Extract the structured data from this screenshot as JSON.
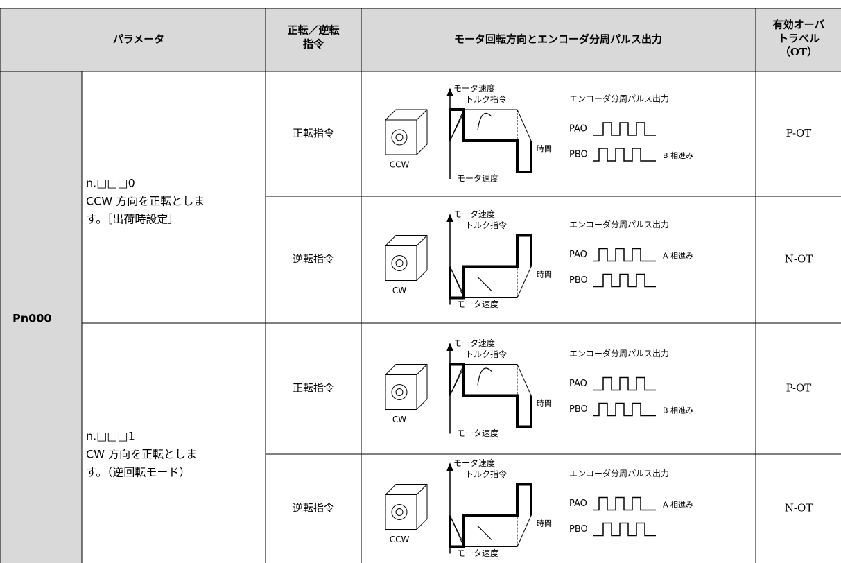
{
  "header": {
    "parameter": "パラメータ",
    "command": [
      "正転／逆転",
      "指令"
    ],
    "diagram": "モータ回転方向とエンコーダ分周パルス出力",
    "overtravel": [
      "有効オーバ",
      "トラベル",
      "（OT）"
    ]
  },
  "parameter": "Pn000",
  "groups": [
    {
      "setting": "n.□□□0",
      "description": [
        "CCW 方向を正転としま",
        "す。［出荷時設定］"
      ]
    },
    {
      "setting": "n.□□□1",
      "description": [
        "CW 方向を正転としま",
        "す。（逆回転モード）"
      ]
    }
  ],
  "rows": [
    {
      "command": "正転指令",
      "motor": "CCW",
      "speed_top": "モータ速度",
      "torque": "トルク指令",
      "time": "時間",
      "speed_bottom": "モータ速度",
      "encoder": "エンコーダ分周パルス出力",
      "pao": "PAO",
      "pbo": "PBO",
      "pbo_note": "B 相進み",
      "ot": "P-OT"
    },
    {
      "command": "逆転指令",
      "motor": "CW",
      "speed_top": "モータ速度",
      "torque": "トルク指令",
      "time": "時間",
      "speed_bottom": "モータ速度",
      "encoder": "エンコーダ分周パルス出力",
      "pao": "PAO",
      "pbo": "PBO",
      "pao_note": "A 相進み",
      "ot": "N-OT"
    },
    {
      "command": "正転指令",
      "motor": "CW",
      "speed_top": "モータ速度",
      "torque": "トルク指令",
      "time": "時間",
      "speed_bottom": "モータ速度",
      "encoder": "エンコーダ分周パルス出力",
      "pao": "PAO",
      "pbo": "PBO",
      "pbo_note": "B 相進み",
      "ot": "P-OT"
    },
    {
      "command": "逆転指令",
      "motor": "CCW",
      "speed_top": "モータ速度",
      "torque": "トルク指令",
      "time": "時間",
      "speed_bottom": "モータ速度",
      "encoder": "エンコーダ分周パルス出力",
      "pao": "PAO",
      "pbo": "PBO",
      "pao_note": "A 相進み",
      "ot": "N-OT"
    }
  ]
}
